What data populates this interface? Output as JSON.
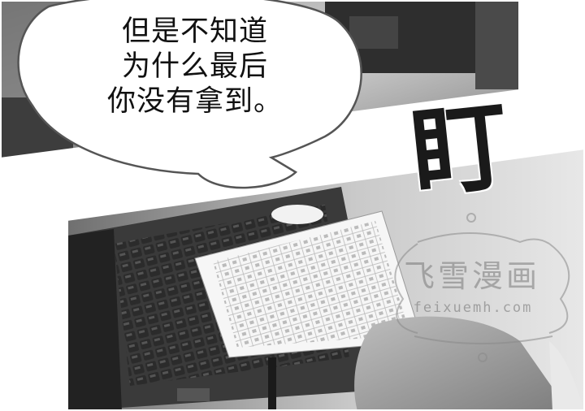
{
  "panels": {
    "top": {
      "scene": "office background behind speech balloon"
    },
    "bottom": {
      "scene": "hand holding lined manuscript paper over a laptop keyboard"
    }
  },
  "speech_bubble": {
    "lines": [
      "但是不知道",
      "为什么最后",
      "你没有拿到。"
    ]
  },
  "sound_effect": {
    "text": "盯"
  },
  "watermark": {
    "title": "飞雪漫画",
    "url": "feixuemh.com"
  },
  "colors": {
    "ink": "#111111",
    "balloon_fill": "#ffffff",
    "photo_dark": "#3a3a3a",
    "photo_mid": "#8c8c8c",
    "photo_light": "#d9d9d9"
  }
}
